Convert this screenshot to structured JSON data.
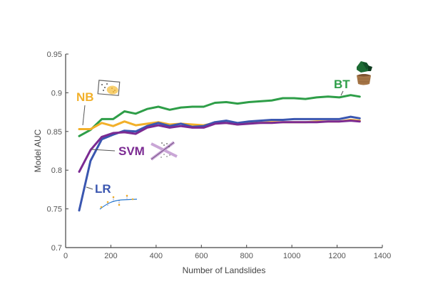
{
  "chart_data": {
    "type": "line",
    "title": "",
    "xlabel": "Number of Landslides",
    "ylabel": "Model AUC",
    "xlim": [
      0,
      1400
    ],
    "ylim": [
      0.7,
      0.95
    ],
    "xticks": [
      0,
      200,
      400,
      600,
      800,
      1000,
      1200,
      1400
    ],
    "xtick_labels": [
      "0",
      "200",
      "400",
      "600",
      "800",
      "1000",
      "1200",
      "1400"
    ],
    "yticks": [
      0.7,
      0.75,
      0.8,
      0.85,
      0.9,
      0.95
    ],
    "ytick_labels": [
      "0.7",
      "0.75",
      "0.8",
      "0.85",
      "0.9",
      "0.95"
    ],
    "grid": false,
    "legend": "inline-labels",
    "x": [
      60,
      110,
      160,
      210,
      260,
      310,
      360,
      410,
      460,
      510,
      560,
      610,
      660,
      710,
      760,
      810,
      860,
      910,
      960,
      1010,
      1060,
      1110,
      1160,
      1210,
      1260,
      1300
    ],
    "series": [
      {
        "name": "BT",
        "color": "#2e9e48",
        "icon": "potted-tree-icon",
        "values": [
          0.844,
          0.852,
          0.866,
          0.866,
          0.876,
          0.873,
          0.879,
          0.882,
          0.878,
          0.881,
          0.882,
          0.882,
          0.887,
          0.888,
          0.886,
          0.888,
          0.889,
          0.89,
          0.893,
          0.893,
          0.892,
          0.894,
          0.895,
          0.894,
          0.897,
          0.895
        ]
      },
      {
        "name": "NB",
        "color": "#f2b02a",
        "icon": "scatter-box-icon",
        "values": [
          0.853,
          0.853,
          0.861,
          0.857,
          0.863,
          0.858,
          0.86,
          0.862,
          0.859,
          0.86,
          0.859,
          0.858,
          0.861,
          0.861,
          0.859,
          0.861,
          0.861,
          0.862,
          0.862,
          0.862,
          0.862,
          0.863,
          0.863,
          0.863,
          0.865,
          0.864
        ]
      },
      {
        "name": "LR",
        "color": "#3a56b0",
        "icon": "logistic-curve-icon",
        "values": [
          0.748,
          0.812,
          0.84,
          0.846,
          0.851,
          0.85,
          0.857,
          0.861,
          0.857,
          0.86,
          0.856,
          0.857,
          0.862,
          0.864,
          0.861,
          0.863,
          0.864,
          0.865,
          0.865,
          0.866,
          0.866,
          0.866,
          0.866,
          0.866,
          0.869,
          0.867
        ]
      },
      {
        "name": "SVM",
        "color": "#7b2a92",
        "icon": "separating-hyperplane-icon",
        "values": [
          0.798,
          0.826,
          0.843,
          0.848,
          0.849,
          0.847,
          0.855,
          0.858,
          0.855,
          0.857,
          0.855,
          0.855,
          0.86,
          0.861,
          0.859,
          0.86,
          0.861,
          0.861,
          0.862,
          0.862,
          0.862,
          0.862,
          0.863,
          0.863,
          0.864,
          0.863
        ]
      }
    ]
  },
  "labels": {
    "NB": "NB",
    "SVM": "SVM",
    "LR": "LR",
    "BT": "BT"
  }
}
